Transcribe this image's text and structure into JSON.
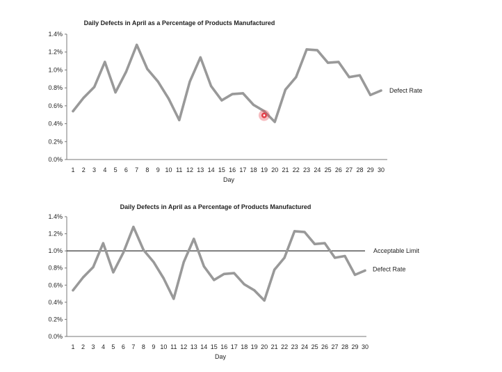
{
  "chart_data": [
    {
      "type": "line",
      "title": "Daily Defects in April as a Percentage of Products Manufactured",
      "xlabel": "Day",
      "ylabel": "",
      "x": [
        1,
        2,
        3,
        4,
        5,
        6,
        7,
        8,
        9,
        10,
        11,
        12,
        13,
        14,
        15,
        16,
        17,
        18,
        19,
        20,
        21,
        22,
        23,
        24,
        25,
        26,
        27,
        28,
        29,
        30
      ],
      "ylim": [
        0,
        1.4
      ],
      "yticks": [
        "0.0%",
        "0.2%",
        "0.4%",
        "0.6%",
        "0.8%",
        "1.0%",
        "1.2%",
        "1.4%"
      ],
      "grid": false,
      "series": [
        {
          "name": "Defect Rate",
          "color": "#999999",
          "values": [
            0.54,
            0.69,
            0.81,
            1.09,
            0.75,
            0.98,
            1.28,
            1.01,
            0.87,
            0.68,
            0.44,
            0.87,
            1.14,
            0.82,
            0.66,
            0.73,
            0.74,
            0.61,
            0.54,
            0.42,
            0.78,
            0.92,
            1.23,
            1.22,
            1.08,
            1.09,
            0.92,
            0.94,
            0.72,
            0.77
          ]
        }
      ],
      "highlight": {
        "day": 19,
        "color": "#e4404a"
      }
    },
    {
      "type": "line",
      "title": "Daily Defects in April as a Percentage of Products Manufactured",
      "xlabel": "Day",
      "ylabel": "",
      "x": [
        1,
        2,
        3,
        4,
        5,
        6,
        7,
        8,
        9,
        10,
        11,
        12,
        13,
        14,
        15,
        16,
        17,
        18,
        19,
        20,
        21,
        22,
        23,
        24,
        25,
        26,
        27,
        28,
        29,
        30
      ],
      "ylim": [
        0,
        1.4
      ],
      "yticks": [
        "0.0%",
        "0.2%",
        "0.4%",
        "0.6%",
        "0.8%",
        "1.0%",
        "1.2%",
        "1.4%"
      ],
      "grid": false,
      "series": [
        {
          "name": "Defect Rate",
          "color": "#999999",
          "values": [
            0.54,
            0.69,
            0.81,
            1.09,
            0.75,
            0.98,
            1.28,
            1.01,
            0.87,
            0.68,
            0.44,
            0.87,
            1.14,
            0.82,
            0.66,
            0.73,
            0.74,
            0.61,
            0.54,
            0.42,
            0.78,
            0.92,
            1.23,
            1.22,
            1.08,
            1.09,
            0.92,
            0.94,
            0.72,
            0.77
          ]
        }
      ],
      "reference_line": {
        "name": "Acceptable Limit",
        "value": 1.0,
        "color": "#333333"
      }
    }
  ]
}
